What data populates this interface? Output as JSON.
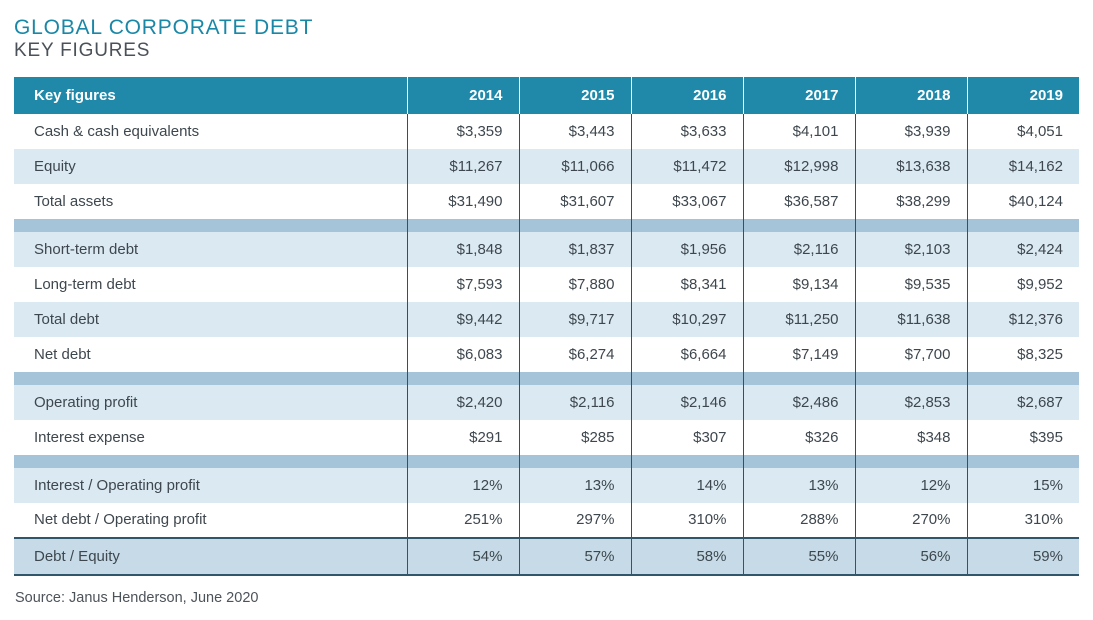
{
  "page": {
    "title": "GLOBAL CORPORATE DEBT",
    "subtitle": "KEY FIGURES",
    "source": "Source: Janus Henderson, June 2020"
  },
  "colors": {
    "header_teal": "#2089a9",
    "title_teal": "#1a87a7",
    "subtitle_gray": "#4b5158",
    "alt_row": "#dbe9f2",
    "band": "#a5c4d9",
    "total_row_bg": "#c6dbe7",
    "dark_border": "#2f566b",
    "grid_line": "#454c51",
    "text": "#3e474e"
  },
  "table": {
    "header_label": "Key figures",
    "years": [
      "2014",
      "2015",
      "2016",
      "2017",
      "2018",
      "2019"
    ],
    "group_sizes": [
      3,
      4,
      2,
      2
    ],
    "rows": [
      {
        "label": "Cash & cash equivalents",
        "values": [
          "$3,359",
          "$3,443",
          "$3,633",
          "$4,101",
          "$3,939",
          "$4,051"
        ]
      },
      {
        "label": "Equity",
        "values": [
          "$11,267",
          "$11,066",
          "$11,472",
          "$12,998",
          "$13,638",
          "$14,162"
        ]
      },
      {
        "label": "Total assets",
        "values": [
          "$31,490",
          "$31,607",
          "$33,067",
          "$36,587",
          "$38,299",
          "$40,124"
        ]
      },
      {
        "label": "Short-term debt",
        "values": [
          "$1,848",
          "$1,837",
          "$1,956",
          "$2,116",
          "$2,103",
          "$2,424"
        ]
      },
      {
        "label": "Long-term debt",
        "values": [
          "$7,593",
          "$7,880",
          "$8,341",
          "$9,134",
          "$9,535",
          "$9,952"
        ]
      },
      {
        "label": "Total debt",
        "values": [
          "$9,442",
          "$9,717",
          "$10,297",
          "$11,250",
          "$11,638",
          "$12,376"
        ]
      },
      {
        "label": "Net debt",
        "values": [
          "$6,083",
          "$6,274",
          "$6,664",
          "$7,149",
          "$7,700",
          "$8,325"
        ]
      },
      {
        "label": "Operating profit",
        "values": [
          "$2,420",
          "$2,116",
          "$2,146",
          "$2,486",
          "$2,853",
          "$2,687"
        ]
      },
      {
        "label": "Interest expense",
        "values": [
          "$291",
          "$285",
          "$307",
          "$326",
          "$348",
          "$395"
        ]
      },
      {
        "label": "Interest / Operating profit",
        "values": [
          "12%",
          "13%",
          "14%",
          "13%",
          "12%",
          "15%"
        ]
      },
      {
        "label": "Net debt / Operating profit",
        "values": [
          "251%",
          "297%",
          "310%",
          "288%",
          "270%",
          "310%"
        ]
      }
    ],
    "total_row": {
      "label": "Debt / Equity",
      "values": [
        "54%",
        "57%",
        "58%",
        "55%",
        "56%",
        "59%"
      ]
    }
  },
  "chart_data": {
    "type": "table",
    "title": "GLOBAL CORPORATE DEBT — KEY FIGURES",
    "columns": [
      "Key figures",
      "2014",
      "2015",
      "2016",
      "2017",
      "2018",
      "2019"
    ],
    "rows": [
      [
        "Cash & cash equivalents",
        "$3,359",
        "$3,443",
        "$3,633",
        "$4,101",
        "$3,939",
        "$4,051"
      ],
      [
        "Equity",
        "$11,267",
        "$11,066",
        "$11,472",
        "$12,998",
        "$13,638",
        "$14,162"
      ],
      [
        "Total assets",
        "$31,490",
        "$31,607",
        "$33,067",
        "$36,587",
        "$38,299",
        "$40,124"
      ],
      [
        "Short-term debt",
        "$1,848",
        "$1,837",
        "$1,956",
        "$2,116",
        "$2,103",
        "$2,424"
      ],
      [
        "Long-term debt",
        "$7,593",
        "$7,880",
        "$8,341",
        "$9,134",
        "$9,535",
        "$9,952"
      ],
      [
        "Total debt",
        "$9,442",
        "$9,717",
        "$10,297",
        "$11,250",
        "$11,638",
        "$12,376"
      ],
      [
        "Net debt",
        "$6,083",
        "$6,274",
        "$6,664",
        "$7,149",
        "$7,700",
        "$8,325"
      ],
      [
        "Operating profit",
        "$2,420",
        "$2,116",
        "$2,146",
        "$2,486",
        "$2,853",
        "$2,687"
      ],
      [
        "Interest expense",
        "$291",
        "$285",
        "$307",
        "$326",
        "$348",
        "$395"
      ],
      [
        "Interest / Operating profit",
        "12%",
        "13%",
        "14%",
        "13%",
        "12%",
        "15%"
      ],
      [
        "Net debt / Operating profit",
        "251%",
        "297%",
        "310%",
        "288%",
        "270%",
        "310%"
      ],
      [
        "Debt / Equity",
        "54%",
        "57%",
        "58%",
        "55%",
        "56%",
        "59%"
      ]
    ],
    "notes": "Source: Janus Henderson, June 2020"
  }
}
